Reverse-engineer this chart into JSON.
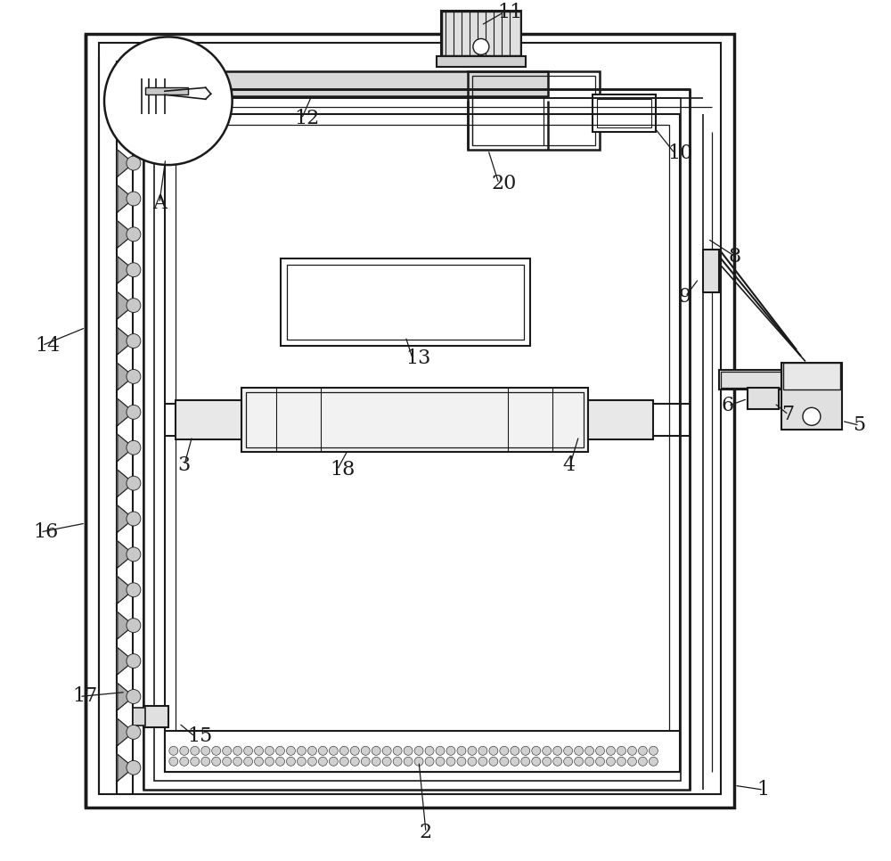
{
  "bg_color": "#ffffff",
  "lc": "#1a1a1a",
  "figsize": [
    10.0,
    9.66
  ],
  "dpi": 100
}
